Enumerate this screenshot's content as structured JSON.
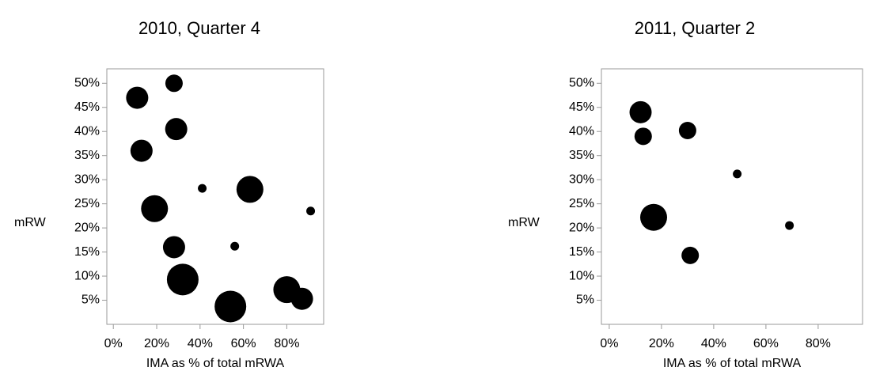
{
  "chart_data": [
    {
      "type": "scatter",
      "title": "2010, Quarter 4",
      "xlabel": "IMA as % of total mRWA",
      "ylabel": "mRW",
      "x_ticks": [
        "0%",
        "20%",
        "40%",
        "60%",
        "80%"
      ],
      "y_ticks": [
        "5%",
        "10%",
        "15%",
        "20%",
        "25%",
        "30%",
        "35%",
        "40%",
        "45%",
        "50%"
      ],
      "xlim": [
        -3,
        97
      ],
      "ylim": [
        0,
        53
      ],
      "grid": false,
      "points": [
        {
          "x": 11,
          "y": 47,
          "size": "large"
        },
        {
          "x": 28,
          "y": 50,
          "size": "medium"
        },
        {
          "x": 13,
          "y": 36,
          "size": "large"
        },
        {
          "x": 29,
          "y": 40.5,
          "size": "large"
        },
        {
          "x": 41,
          "y": 28.2,
          "size": "small"
        },
        {
          "x": 63,
          "y": 28,
          "size": "xlarge"
        },
        {
          "x": 91,
          "y": 23.5,
          "size": "small"
        },
        {
          "x": 19,
          "y": 24,
          "size": "xlarge"
        },
        {
          "x": 56,
          "y": 16.2,
          "size": "small"
        },
        {
          "x": 28,
          "y": 16,
          "size": "large"
        },
        {
          "x": 32,
          "y": 9.3,
          "size": "xxlarge"
        },
        {
          "x": 80,
          "y": 7.2,
          "size": "xlarge"
        },
        {
          "x": 87,
          "y": 5.3,
          "size": "large"
        },
        {
          "x": 54,
          "y": 3.7,
          "size": "xxlarge"
        }
      ]
    },
    {
      "type": "scatter",
      "title": "2011, Quarter 2",
      "xlabel": "IMA as % of total mRWA",
      "ylabel": "mRW",
      "x_ticks": [
        "0%",
        "20%",
        "40%",
        "60%",
        "80%"
      ],
      "y_ticks": [
        "5%",
        "10%",
        "15%",
        "20%",
        "25%",
        "30%",
        "35%",
        "40%",
        "45%",
        "50%"
      ],
      "xlim": [
        -3,
        97
      ],
      "ylim": [
        0,
        53
      ],
      "grid": false,
      "points": [
        {
          "x": 12,
          "y": 44,
          "size": "large"
        },
        {
          "x": 13,
          "y": 39,
          "size": "medium"
        },
        {
          "x": 30,
          "y": 40.2,
          "size": "medium"
        },
        {
          "x": 49,
          "y": 31.2,
          "size": "small"
        },
        {
          "x": 17,
          "y": 22.2,
          "size": "xlarge"
        },
        {
          "x": 69,
          "y": 20.5,
          "size": "small"
        },
        {
          "x": 31,
          "y": 14.3,
          "size": "medium"
        }
      ]
    }
  ]
}
